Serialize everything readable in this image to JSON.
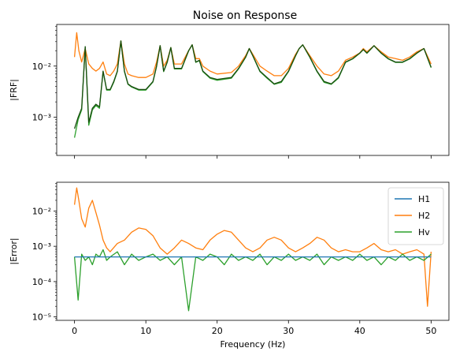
{
  "title": "Noise on Response",
  "colors": {
    "H1": "#1f77b4",
    "H2": "#ff7f0e",
    "Hv": "#2ca02c"
  },
  "chart_data": [
    {
      "type": "line",
      "title": "Noise on Response",
      "xlabel": "",
      "ylabel": "|FRF|",
      "yscale": "log",
      "xlim": [
        -2.5,
        52.5
      ],
      "ylim": [
        0.00018,
        0.065
      ],
      "xticks": [
        0,
        10,
        20,
        30,
        40,
        50
      ],
      "yticks": [
        {
          "value": 0.001,
          "label": "10⁻³"
        },
        {
          "value": 0.01,
          "label": "10⁻²"
        }
      ],
      "grid": false,
      "series": [
        {
          "name": "H1",
          "x": [
            0,
            0.5,
            1,
            1.5,
            2,
            2.5,
            3,
            3.5,
            4,
            4.5,
            5,
            5.5,
            6,
            6.5,
            7,
            7.5,
            8,
            9,
            10,
            11,
            11.5,
            12,
            12.5,
            13,
            13.5,
            14,
            15,
            16,
            16.5,
            17,
            17.5,
            18,
            19,
            20,
            22,
            23,
            24,
            24.5,
            25,
            26,
            27,
            28,
            29,
            30,
            31,
            31.5,
            32,
            33,
            34,
            35,
            36,
            37,
            38,
            39,
            40,
            40.5,
            41,
            42,
            43,
            44,
            45,
            46,
            47,
            48,
            49,
            50
          ],
          "values": [
            0.0006,
            0.001,
            0.0015,
            0.024,
            0.0008,
            0.0015,
            0.0018,
            0.0016,
            0.008,
            0.0035,
            0.0035,
            0.005,
            0.008,
            0.031,
            0.008,
            0.0045,
            0.004,
            0.0035,
            0.0035,
            0.005,
            0.01,
            0.025,
            0.008,
            0.012,
            0.023,
            0.009,
            0.009,
            0.02,
            0.026,
            0.012,
            0.013,
            0.008,
            0.006,
            0.0055,
            0.006,
            0.009,
            0.015,
            0.022,
            0.016,
            0.008,
            0.006,
            0.0045,
            0.005,
            0.008,
            0.016,
            0.022,
            0.026,
            0.015,
            0.008,
            0.005,
            0.0045,
            0.006,
            0.012,
            0.014,
            0.018,
            0.021,
            0.018,
            0.025,
            0.018,
            0.014,
            0.012,
            0.012,
            0.014,
            0.018,
            0.022,
            0.0095
          ]
        },
        {
          "name": "H2",
          "x": [
            0,
            0.3,
            0.6,
            1,
            1.5,
            2,
            2.5,
            3,
            3.5,
            4,
            4.5,
            5,
            5.5,
            6,
            6.5,
            7,
            7.5,
            8,
            9,
            10,
            11,
            11.5,
            12,
            12.5,
            13,
            13.5,
            14,
            15,
            16,
            16.5,
            17,
            17.5,
            18,
            19,
            20,
            22,
            23,
            24,
            24.5,
            25,
            26,
            27,
            28,
            29,
            30,
            31,
            31.5,
            32,
            33,
            34,
            35,
            36,
            37,
            38,
            39,
            40,
            40.5,
            41,
            42,
            43,
            44,
            45,
            46,
            47,
            48,
            49,
            50
          ],
          "values": [
            0.015,
            0.045,
            0.02,
            0.012,
            0.022,
            0.011,
            0.009,
            0.008,
            0.009,
            0.012,
            0.007,
            0.0065,
            0.008,
            0.011,
            0.031,
            0.011,
            0.007,
            0.0065,
            0.006,
            0.006,
            0.007,
            0.012,
            0.025,
            0.01,
            0.013,
            0.023,
            0.011,
            0.011,
            0.02,
            0.026,
            0.014,
            0.014,
            0.01,
            0.008,
            0.007,
            0.0075,
            0.01,
            0.016,
            0.022,
            0.017,
            0.01,
            0.008,
            0.0065,
            0.0065,
            0.009,
            0.017,
            0.022,
            0.026,
            0.016,
            0.01,
            0.007,
            0.0065,
            0.008,
            0.013,
            0.015,
            0.018,
            0.022,
            0.019,
            0.025,
            0.019,
            0.015,
            0.014,
            0.013,
            0.015,
            0.019,
            0.022,
            0.011
          ]
        },
        {
          "name": "Hv",
          "x": [
            0,
            0.5,
            1,
            1.5,
            2,
            2.5,
            3,
            3.5,
            4,
            4.5,
            5,
            5.5,
            6,
            6.5,
            7,
            7.5,
            8,
            9,
            10,
            11,
            11.5,
            12,
            12.5,
            13,
            13.5,
            14,
            15,
            16,
            16.5,
            17,
            17.5,
            18,
            19,
            20,
            22,
            23,
            24,
            24.5,
            25,
            26,
            27,
            28,
            29,
            30,
            31,
            31.5,
            32,
            33,
            34,
            35,
            36,
            37,
            38,
            39,
            40,
            40.5,
            41,
            42,
            43,
            44,
            45,
            46,
            47,
            48,
            49,
            50
          ],
          "values": [
            0.0004,
            0.0009,
            0.0014,
            0.024,
            0.0007,
            0.0014,
            0.0017,
            0.0015,
            0.0078,
            0.0034,
            0.0034,
            0.0048,
            0.0078,
            0.031,
            0.0078,
            0.0044,
            0.0039,
            0.0034,
            0.0034,
            0.0049,
            0.0098,
            0.025,
            0.0078,
            0.0118,
            0.023,
            0.0088,
            0.0088,
            0.0198,
            0.026,
            0.0118,
            0.0128,
            0.0078,
            0.0058,
            0.0053,
            0.0058,
            0.0088,
            0.0148,
            0.022,
            0.0158,
            0.0078,
            0.0058,
            0.0044,
            0.0048,
            0.0078,
            0.0158,
            0.022,
            0.026,
            0.0148,
            0.0078,
            0.0048,
            0.0044,
            0.0058,
            0.0118,
            0.0138,
            0.0178,
            0.021,
            0.0178,
            0.025,
            0.0178,
            0.0138,
            0.0118,
            0.0118,
            0.0138,
            0.0178,
            0.022,
            0.0093
          ]
        }
      ]
    },
    {
      "type": "line",
      "title": "",
      "xlabel": "Frequency (Hz)",
      "ylabel": "|Error|",
      "yscale": "log",
      "xlim": [
        -2.5,
        52.5
      ],
      "ylim": [
        8e-06,
        0.065
      ],
      "xticks": [
        0,
        10,
        20,
        30,
        40,
        50
      ],
      "yticks": [
        {
          "value": 1e-05,
          "label": "10⁻⁵"
        },
        {
          "value": 0.0001,
          "label": "10⁻⁴"
        },
        {
          "value": 0.001,
          "label": "10⁻³"
        },
        {
          "value": 0.01,
          "label": "10⁻²"
        }
      ],
      "grid": false,
      "legend": "top-right",
      "series": [
        {
          "name": "H1",
          "x": [
            0,
            50
          ],
          "values": [
            0.0005,
            0.0005
          ]
        },
        {
          "name": "H2",
          "x": [
            0,
            0.3,
            0.6,
            1,
            1.5,
            2,
            2.5,
            3,
            3.5,
            4,
            4.5,
            5,
            6,
            7,
            8,
            9,
            10,
            11,
            12,
            13,
            14,
            15,
            16,
            17,
            18,
            19,
            20,
            21,
            22,
            23,
            24,
            25,
            26,
            27,
            28,
            29,
            30,
            31,
            32,
            33,
            34,
            35,
            36,
            37,
            38,
            39,
            40,
            41,
            42,
            43,
            44,
            45,
            46,
            47,
            48,
            49,
            49.5,
            50
          ],
          "values": [
            0.015,
            0.045,
            0.02,
            0.006,
            0.0035,
            0.012,
            0.02,
            0.009,
            0.004,
            0.0015,
            0.0009,
            0.0007,
            0.0012,
            0.0015,
            0.0025,
            0.0033,
            0.003,
            0.002,
            0.0009,
            0.0006,
            0.0009,
            0.0015,
            0.0012,
            0.0009,
            0.0008,
            0.0015,
            0.0022,
            0.0028,
            0.0025,
            0.0015,
            0.0009,
            0.0007,
            0.0009,
            0.0015,
            0.0018,
            0.0015,
            0.0009,
            0.0007,
            0.0009,
            0.0012,
            0.0018,
            0.0015,
            0.0009,
            0.0007,
            0.0008,
            0.0007,
            0.0007,
            0.0009,
            0.0012,
            0.0008,
            0.0007,
            0.0008,
            0.0006,
            0.0007,
            0.0008,
            0.0006,
            2e-05,
            0.0007
          ]
        },
        {
          "name": "Hv",
          "x": [
            0,
            0.5,
            1,
            1.5,
            2,
            2.5,
            3,
            3.5,
            4,
            4.5,
            5,
            6,
            7,
            8,
            9,
            10,
            11,
            12,
            13,
            14,
            15,
            16,
            17,
            18,
            19,
            20,
            21,
            22,
            23,
            24,
            25,
            26,
            27,
            28,
            29,
            30,
            31,
            32,
            33,
            34,
            35,
            36,
            37,
            38,
            39,
            40,
            41,
            42,
            43,
            44,
            45,
            46,
            47,
            48,
            49,
            50
          ],
          "values": [
            0.0005,
            3e-05,
            0.0006,
            0.0004,
            0.0005,
            0.0003,
            0.0006,
            0.0005,
            0.0008,
            0.0004,
            0.0005,
            0.0007,
            0.0003,
            0.0006,
            0.0004,
            0.0005,
            0.0006,
            0.0004,
            0.0005,
            0.0003,
            0.0005,
            1.5e-05,
            0.0005,
            0.0004,
            0.0006,
            0.0005,
            0.0003,
            0.0006,
            0.0004,
            0.0005,
            0.0004,
            0.0006,
            0.0003,
            0.0005,
            0.0004,
            0.0006,
            0.0004,
            0.0005,
            0.0004,
            0.0006,
            0.0003,
            0.0005,
            0.0004,
            0.0005,
            0.0004,
            0.0006,
            0.0004,
            0.0005,
            0.0003,
            0.0005,
            0.0004,
            0.0006,
            0.0004,
            0.0005,
            0.0004,
            0.0006
          ]
        }
      ]
    }
  ]
}
